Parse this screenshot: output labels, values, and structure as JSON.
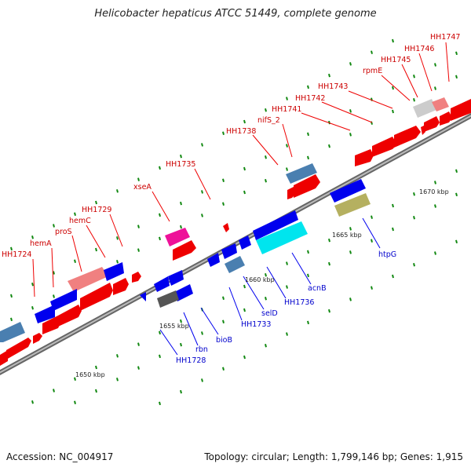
{
  "title": "Helicobacter hepaticus ATCC 51449, complete genome",
  "footer": {
    "accession": "Accession: NC_004917",
    "stats": "Topology: circular; Length: 1,799,146 bp; Genes: 1,915"
  },
  "colors": {
    "forward": "#ff0000",
    "reverse": "#0000ee",
    "forward_label": "#cc0000",
    "reverse_label": "#0000cc",
    "backbone": "#888888",
    "tick": "#118811"
  },
  "tick_labels": [
    "1650 kbp",
    "1655 kbp",
    "1660 kbp",
    "1665 kbp",
    "1670 kbp"
  ],
  "forward_labels": [
    "HH1724",
    "hemA",
    "proS",
    "hemC",
    "HH1729",
    "xseA",
    "HH1735",
    "HH1738",
    "nifS_2",
    "HH1741",
    "HH1742",
    "HH1743",
    "rpmE",
    "HH1745",
    "HH1746",
    "HH1747"
  ],
  "reverse_labels": [
    "HH1728",
    "rbn",
    "bioB",
    "HH1733",
    "selD",
    "HH1736",
    "acnB",
    "htpG"
  ]
}
